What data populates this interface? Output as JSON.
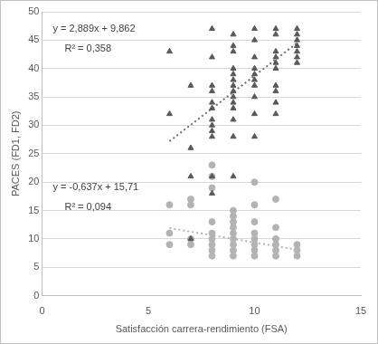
{
  "chart_data": {
    "type": "scatter",
    "x_label": "Satisfacción carrera-rendimiento (FSA)",
    "y_label": "PACES (FD1, FD2)",
    "xlim": [
      0,
      15
    ],
    "xticks": [
      0,
      5,
      10,
      15
    ],
    "ylim": [
      0,
      50
    ],
    "yticks": [
      0,
      5,
      10,
      15,
      20,
      25,
      30,
      35,
      40,
      45,
      50
    ],
    "grid": true,
    "annotations": [
      "y = 2,889x + 9,862",
      "R² = 0,358",
      "y = -0,637x + 15,71",
      "R² = 0,094"
    ],
    "series": [
      {
        "color": "#595959",
        "marker": "triangle",
        "x": [
          6,
          6,
          7,
          7,
          7,
          7,
          8,
          8,
          8,
          8,
          8,
          8,
          8,
          8,
          8,
          8,
          8,
          8,
          9,
          9,
          9,
          9,
          9,
          9,
          9,
          9,
          9,
          9,
          9,
          9,
          9,
          9,
          10,
          10,
          10,
          10,
          10,
          10,
          10,
          10,
          10,
          10,
          11,
          11,
          11,
          11,
          11,
          11,
          11,
          11,
          11,
          11,
          12,
          12,
          12,
          12,
          12,
          12,
          12
        ],
        "values": [
          32,
          43,
          37,
          26,
          21,
          10,
          47,
          42,
          37,
          36,
          34,
          33,
          31,
          30,
          29,
          28,
          21,
          18,
          46,
          44,
          43,
          40,
          39,
          38,
          37,
          36,
          35,
          34,
          33,
          31,
          28,
          21,
          47,
          45,
          42,
          40,
          39,
          38,
          37,
          35,
          32,
          28,
          47,
          46,
          43,
          42,
          41,
          40,
          37,
          36,
          34,
          32,
          47,
          46,
          45,
          44,
          43,
          42,
          41
        ]
      },
      {
        "color": "#b3b3b3",
        "marker": "circle",
        "x": [
          6,
          6,
          6,
          7,
          7,
          7,
          7,
          8,
          8,
          8,
          8,
          8,
          8,
          8,
          8,
          8,
          9,
          9,
          9,
          9,
          9,
          9,
          9,
          9,
          9,
          10,
          10,
          10,
          10,
          10,
          10,
          10,
          10,
          11,
          11,
          11,
          11,
          11,
          11,
          12,
          12,
          12
        ],
        "values": [
          16,
          11,
          9,
          17,
          16,
          10,
          9,
          23,
          21,
          19,
          13,
          11,
          10,
          9,
          8,
          7,
          15,
          14,
          13,
          12,
          11,
          10,
          9,
          8,
          7,
          20,
          16,
          13,
          11,
          10,
          9,
          8,
          7,
          17,
          12,
          10,
          9,
          8,
          7,
          9,
          8,
          7
        ]
      },
      {
        "type": "line",
        "color": "#6e6e6e",
        "marker": "none",
        "line_style": "dotted",
        "x": [
          6,
          12
        ],
        "values": [
          27.2,
          44.5
        ]
      },
      {
        "type": "line",
        "color": "#b3b3b3",
        "marker": "none",
        "line_style": "dotted",
        "x": [
          6,
          12
        ],
        "values": [
          11.9,
          8.1
        ]
      }
    ]
  }
}
